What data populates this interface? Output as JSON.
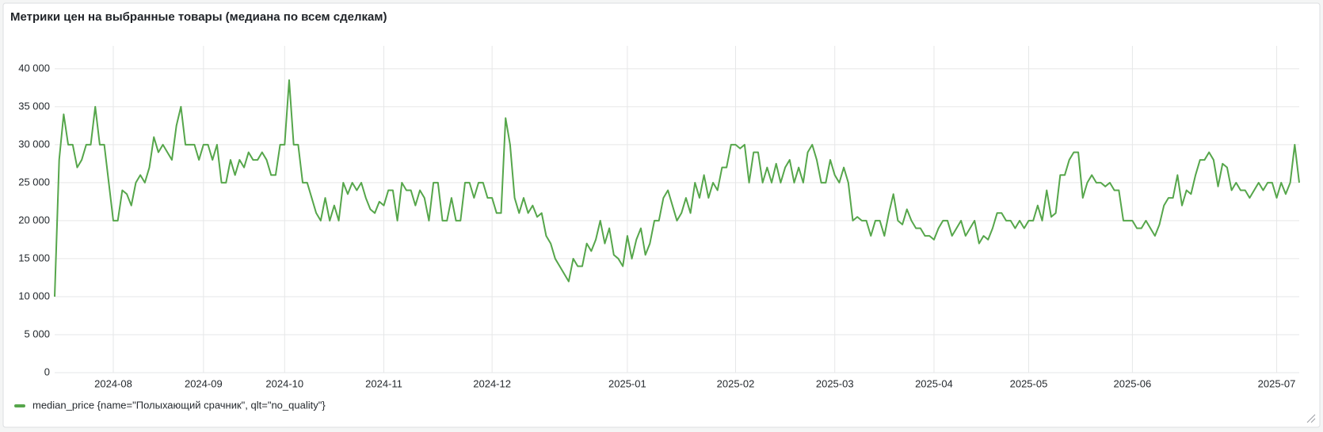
{
  "chart_data": {
    "type": "line",
    "title": "Метрики цен на выбранные товары (медиана по всем сделкам)",
    "categories": [
      null,
      null,
      null,
      null,
      null,
      null,
      null,
      null,
      null,
      null,
      null,
      null,
      null,
      "2024-08",
      null,
      null,
      null,
      null,
      null,
      null,
      null,
      null,
      null,
      null,
      null,
      null,
      null,
      null,
      null,
      null,
      null,
      null,
      null,
      "2024-09",
      null,
      null,
      null,
      null,
      null,
      null,
      null,
      null,
      null,
      null,
      null,
      null,
      null,
      null,
      null,
      null,
      null,
      "2024-10",
      null,
      null,
      null,
      null,
      null,
      null,
      null,
      null,
      null,
      null,
      null,
      null,
      null,
      null,
      null,
      null,
      null,
      null,
      null,
      null,
      null,
      "2024-11",
      null,
      null,
      null,
      null,
      null,
      null,
      null,
      null,
      null,
      null,
      null,
      null,
      null,
      null,
      null,
      null,
      null,
      null,
      null,
      null,
      null,
      null,
      null,
      "2024-12",
      null,
      null,
      null,
      null,
      null,
      null,
      null,
      null,
      null,
      null,
      null,
      null,
      null,
      null,
      null,
      null,
      null,
      null,
      null,
      null,
      null,
      null,
      null,
      null,
      null,
      null,
      null,
      null,
      null,
      "2025-01",
      null,
      null,
      null,
      null,
      null,
      null,
      null,
      null,
      null,
      null,
      null,
      null,
      null,
      null,
      null,
      null,
      null,
      null,
      null,
      null,
      null,
      null,
      null,
      "2025-02",
      null,
      null,
      null,
      null,
      null,
      null,
      null,
      null,
      null,
      null,
      null,
      null,
      null,
      null,
      null,
      null,
      null,
      null,
      null,
      null,
      null,
      "2025-03",
      null,
      null,
      null,
      null,
      null,
      null,
      null,
      null,
      null,
      null,
      null,
      null,
      null,
      null,
      null,
      null,
      null,
      null,
      null,
      null,
      null,
      "2025-04",
      null,
      null,
      null,
      null,
      null,
      null,
      null,
      null,
      null,
      null,
      null,
      null,
      null,
      null,
      null,
      null,
      null,
      null,
      null,
      null,
      "2025-05",
      null,
      null,
      null,
      null,
      null,
      null,
      null,
      null,
      null,
      null,
      null,
      null,
      null,
      null,
      null,
      null,
      null,
      null,
      null,
      null,
      null,
      null,
      "2025-06",
      null,
      null,
      null,
      null,
      null,
      null,
      null,
      null,
      null,
      null,
      null,
      null,
      null,
      null,
      null,
      null,
      null,
      null,
      null,
      null,
      null,
      null,
      null,
      null,
      null,
      null,
      null,
      null,
      null,
      null,
      null,
      "2025-07",
      null,
      null,
      null,
      null,
      null
    ],
    "series": [
      {
        "name": "median_price {name=\"Полыхающий срачник\", qlt=\"no_quality\"}",
        "color": "#56a64b",
        "values": [
          10000,
          28000,
          34000,
          30000,
          30000,
          27000,
          28000,
          30000,
          30000,
          35000,
          30000,
          30000,
          25000,
          20000,
          20000,
          24000,
          23500,
          22000,
          25000,
          26000,
          25000,
          27000,
          31000,
          29000,
          30000,
          29000,
          28000,
          32500,
          35000,
          30000,
          30000,
          30000,
          28000,
          30000,
          30000,
          28000,
          30000,
          25000,
          25000,
          28000,
          26000,
          28000,
          27000,
          29000,
          28000,
          28000,
          29000,
          28000,
          26000,
          26000,
          30000,
          30000,
          38500,
          30000,
          30000,
          25000,
          25000,
          23000,
          21000,
          20000,
          23000,
          20000,
          22000,
          20000,
          25000,
          23500,
          25000,
          24000,
          25000,
          23000,
          21500,
          21000,
          22500,
          22000,
          24000,
          24000,
          20000,
          25000,
          24000,
          24000,
          22000,
          24000,
          23000,
          20000,
          25000,
          25000,
          20000,
          20000,
          23000,
          20000,
          20000,
          25000,
          25000,
          23000,
          25000,
          25000,
          23000,
          23000,
          21000,
          21000,
          33500,
          30000,
          23000,
          21000,
          23000,
          21000,
          22000,
          20500,
          21000,
          18000,
          17000,
          15000,
          14000,
          13000,
          12000,
          15000,
          14000,
          14000,
          17000,
          16000,
          17500,
          20000,
          17000,
          19000,
          15500,
          15000,
          14000,
          18000,
          15000,
          17500,
          19000,
          15500,
          17000,
          20000,
          20000,
          23000,
          24000,
          22000,
          20000,
          21000,
          23000,
          21000,
          25000,
          23000,
          26000,
          23000,
          25000,
          24000,
          27000,
          27000,
          30000,
          30000,
          29500,
          30000,
          25000,
          29000,
          29000,
          25000,
          27000,
          25000,
          27500,
          25000,
          27000,
          28000,
          25000,
          27000,
          25000,
          29000,
          30000,
          28000,
          25000,
          25000,
          28000,
          26000,
          25000,
          27000,
          25000,
          20000,
          20500,
          20000,
          20000,
          18000,
          20000,
          20000,
          18000,
          21000,
          23500,
          20000,
          19500,
          21500,
          20000,
          19000,
          19000,
          18000,
          18000,
          17500,
          19000,
          20000,
          20000,
          18000,
          19000,
          20000,
          18000,
          19000,
          20000,
          17000,
          18000,
          17500,
          19000,
          21000,
          21000,
          20000,
          20000,
          19000,
          20000,
          19000,
          20000,
          20000,
          22000,
          20000,
          24000,
          20500,
          21000,
          26000,
          26000,
          28000,
          29000,
          29000,
          23000,
          25000,
          26000,
          25000,
          25000,
          24500,
          25000,
          24000,
          24000,
          20000,
          20000,
          20000,
          19000,
          19000,
          20000,
          19000,
          18000,
          19500,
          22000,
          23000,
          23000,
          26000,
          22000,
          24000,
          23500,
          26000,
          28000,
          28000,
          29000,
          28000,
          24500,
          27500,
          27000,
          24000,
          25000,
          24000,
          24000,
          23000,
          24000,
          25000,
          24000,
          25000,
          25000,
          23000,
          25000,
          23500,
          25000,
          30000,
          25000
        ]
      }
    ],
    "ylim": [
      0,
      43000
    ],
    "yticks": [
      0,
      {
        "value": 5000,
        "label": "5 000"
      },
      {
        "value": 10000,
        "label": "10 000"
      },
      {
        "value": 15000,
        "label": "15 000"
      },
      {
        "value": 20000,
        "label": "20 000"
      },
      {
        "value": 25000,
        "label": "25 000"
      },
      {
        "value": 30000,
        "label": "30 000"
      },
      {
        "value": 35000,
        "label": "35 000"
      },
      {
        "value": 40000,
        "label": "40 000"
      }
    ],
    "grid": true,
    "legend": "bottom"
  }
}
